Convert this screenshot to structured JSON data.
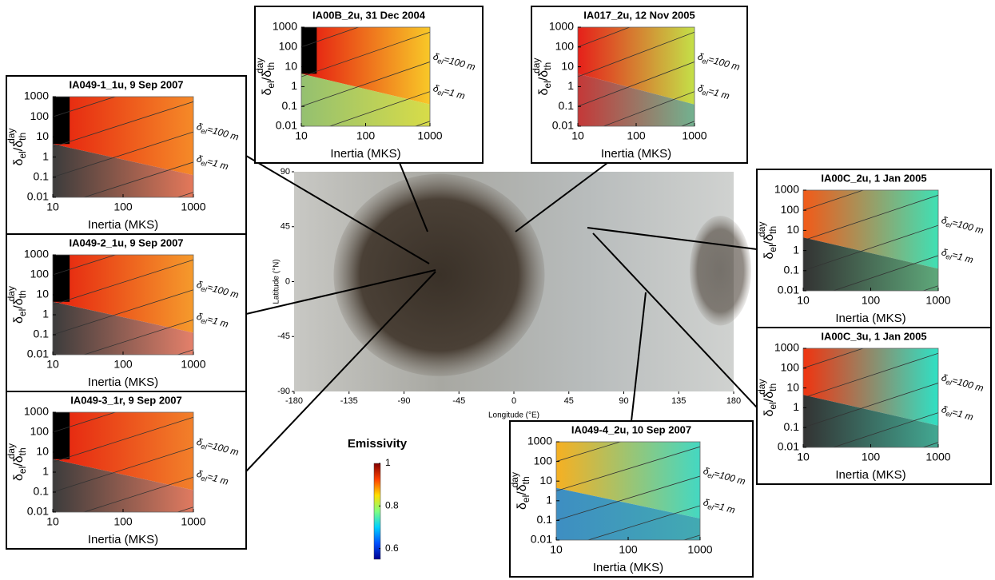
{
  "chart_data": [
    {
      "type": "heatmap",
      "title": "IA049-1_1u, 9 Sep 2007",
      "xlabel": "Inertia (MKS)",
      "ylabel": [
        "δ",
        "el",
        "/δ",
        "th",
        "day"
      ],
      "xlim": [
        10,
        1000
      ],
      "ylim": [
        0.01,
        1000
      ],
      "xticks": [
        10,
        100,
        1000
      ],
      "yticks": [
        0.01,
        0.1,
        1,
        10,
        100,
        1000
      ],
      "log": true,
      "annotations": [
        [
          "δ",
          "el",
          "=100 m"
        ],
        [
          "δ",
          "el",
          "=1 m"
        ]
      ],
      "colors": [
        "#e5200e",
        "#f58a28",
        "#3c3c3c",
        "#e4785a"
      ],
      "mask": "#000000"
    },
    {
      "type": "heatmap",
      "title": "IA049-2_1u, 9 Sep 2007",
      "xlabel": "Inertia (MKS)",
      "ylabel": [
        "δ",
        "el",
        "/δ",
        "th",
        "day"
      ],
      "xlim": [
        10,
        1000
      ],
      "ylim": [
        0.01,
        1000
      ],
      "xticks": [
        10,
        100,
        1000
      ],
      "yticks": [
        0.01,
        0.1,
        1,
        10,
        100,
        1000
      ],
      "log": true,
      "annotations": [
        [
          "δ",
          "el",
          "=100 m"
        ],
        [
          "δ",
          "el",
          "=1 m"
        ]
      ],
      "colors": [
        "#e5200e",
        "#f59a2c",
        "#3c3c3c",
        "#e4806a"
      ],
      "mask": "#000000"
    },
    {
      "type": "heatmap",
      "title": "IA049-3_1r, 9 Sep 2007",
      "xlabel": "Inertia (MKS)",
      "ylabel": [
        "δ",
        "el",
        "/δ",
        "th",
        "day"
      ],
      "xlim": [
        10,
        1000
      ],
      "ylim": [
        0.01,
        1000
      ],
      "xticks": [
        10,
        100,
        1000
      ],
      "yticks": [
        0.01,
        0.1,
        1,
        10,
        100,
        1000
      ],
      "log": true,
      "annotations": [
        [
          "δ",
          "el",
          "=100 m"
        ],
        [
          "δ",
          "el",
          "=1 m"
        ]
      ],
      "colors": [
        "#e5200e",
        "#f2802a",
        "#3c3c3c",
        "#e07a60"
      ],
      "mask": "#000000"
    },
    {
      "type": "heatmap",
      "title": "IA00B_2u, 31 Dec 2004",
      "xlabel": "Inertia (MKS)",
      "ylabel": [
        "δ",
        "el",
        "/δ",
        "th",
        "day"
      ],
      "xlim": [
        10,
        1000
      ],
      "ylim": [
        0.01,
        1000
      ],
      "xticks": [
        10,
        100,
        1000
      ],
      "yticks": [
        0.01,
        0.1,
        1,
        10,
        100,
        1000
      ],
      "log": true,
      "annotations": [
        [
          "δ",
          "el",
          "=100 m"
        ],
        [
          "δ",
          "el",
          "=1 m"
        ]
      ],
      "colors": [
        "#e41410",
        "#f8c828",
        "#94c070",
        "#d8dc48"
      ],
      "mask": "#000000"
    },
    {
      "type": "heatmap",
      "title": "IA017_2u, 12 Nov 2005",
      "xlabel": "Inertia (MKS)",
      "ylabel": [
        "δ",
        "el",
        "/δ",
        "th",
        "day"
      ],
      "xlim": [
        10,
        1000
      ],
      "ylim": [
        0.01,
        1000
      ],
      "xticks": [
        10,
        100,
        1000
      ],
      "yticks": [
        0.01,
        0.1,
        1,
        10,
        100,
        1000
      ],
      "log": true,
      "annotations": [
        [
          "δ",
          "el",
          "=100 m"
        ],
        [
          "δ",
          "el",
          "=1 m"
        ]
      ],
      "colors": [
        "#e6201a",
        "#c4e048",
        "#c43838",
        "#72b290"
      ]
    },
    {
      "type": "heatmap",
      "title": "IA00C_2u, 1 Jan 2005",
      "xlabel": "Inertia (MKS)",
      "ylabel": [
        "δ",
        "el",
        "/δ",
        "th",
        "day"
      ],
      "xlim": [
        10,
        1000
      ],
      "ylim": [
        0.01,
        1000
      ],
      "xticks": [
        10,
        100,
        1000
      ],
      "yticks": [
        0.01,
        0.1,
        1,
        10,
        100,
        1000
      ],
      "log": true,
      "annotations": [
        [
          "δ",
          "el",
          "=100 m"
        ],
        [
          "δ",
          "el",
          "=1 m"
        ]
      ],
      "colors": [
        "#f25a18",
        "#40e0b4",
        "#333333",
        "#5ea87a"
      ]
    },
    {
      "type": "heatmap",
      "title": "IA00C_3u, 1 Jan 2005",
      "xlabel": "Inertia (MKS)",
      "ylabel": [
        "δ",
        "el",
        "/δ",
        "th",
        "day"
      ],
      "xlim": [
        10,
        1000
      ],
      "ylim": [
        0.01,
        1000
      ],
      "xticks": [
        10,
        100,
        1000
      ],
      "yticks": [
        0.01,
        0.1,
        1,
        10,
        100,
        1000
      ],
      "log": true,
      "annotations": [
        [
          "δ",
          "el",
          "=100 m"
        ],
        [
          "δ",
          "el",
          "=1 m"
        ]
      ],
      "colors": [
        "#f03410",
        "#30e0c4",
        "#333333",
        "#42a892"
      ]
    },
    {
      "type": "heatmap",
      "title": "IA049-4_2u, 10 Sep 2007",
      "xlabel": "Inertia (MKS)",
      "ylabel": [
        "δ",
        "el",
        "/δ",
        "th",
        "day"
      ],
      "xlim": [
        10,
        1000
      ],
      "ylim": [
        0.01,
        1000
      ],
      "xticks": [
        10,
        100,
        1000
      ],
      "yticks": [
        0.01,
        0.1,
        1,
        10,
        100,
        1000
      ],
      "log": true,
      "annotations": [
        [
          "δ",
          "el",
          "=100 m"
        ],
        [
          "δ",
          "el",
          "=1 m"
        ]
      ],
      "colors": [
        "#f6b022",
        "#44d8c2",
        "#3e8ec2",
        "#42aab2"
      ]
    },
    {
      "type": "map",
      "xlabel": "Longitude (°E)",
      "ylabel": "Latitude (°N)",
      "xlim": [
        -180,
        180
      ],
      "ylim": [
        -90,
        90
      ],
      "xticks": [
        -180,
        -135,
        -90,
        -45,
        0,
        45,
        90,
        135,
        180
      ],
      "yticks": [
        -90,
        -45,
        0,
        45,
        90
      ]
    },
    {
      "type": "colorbar",
      "title": "Emissivity",
      "ylim": [
        0.55,
        1
      ],
      "yticks": [
        0.6,
        0.8,
        1
      ],
      "colors": [
        "#000090",
        "#0050ff",
        "#00d0ff",
        "#80ff80",
        "#ffe000",
        "#ff4000",
        "#800000"
      ]
    }
  ]
}
